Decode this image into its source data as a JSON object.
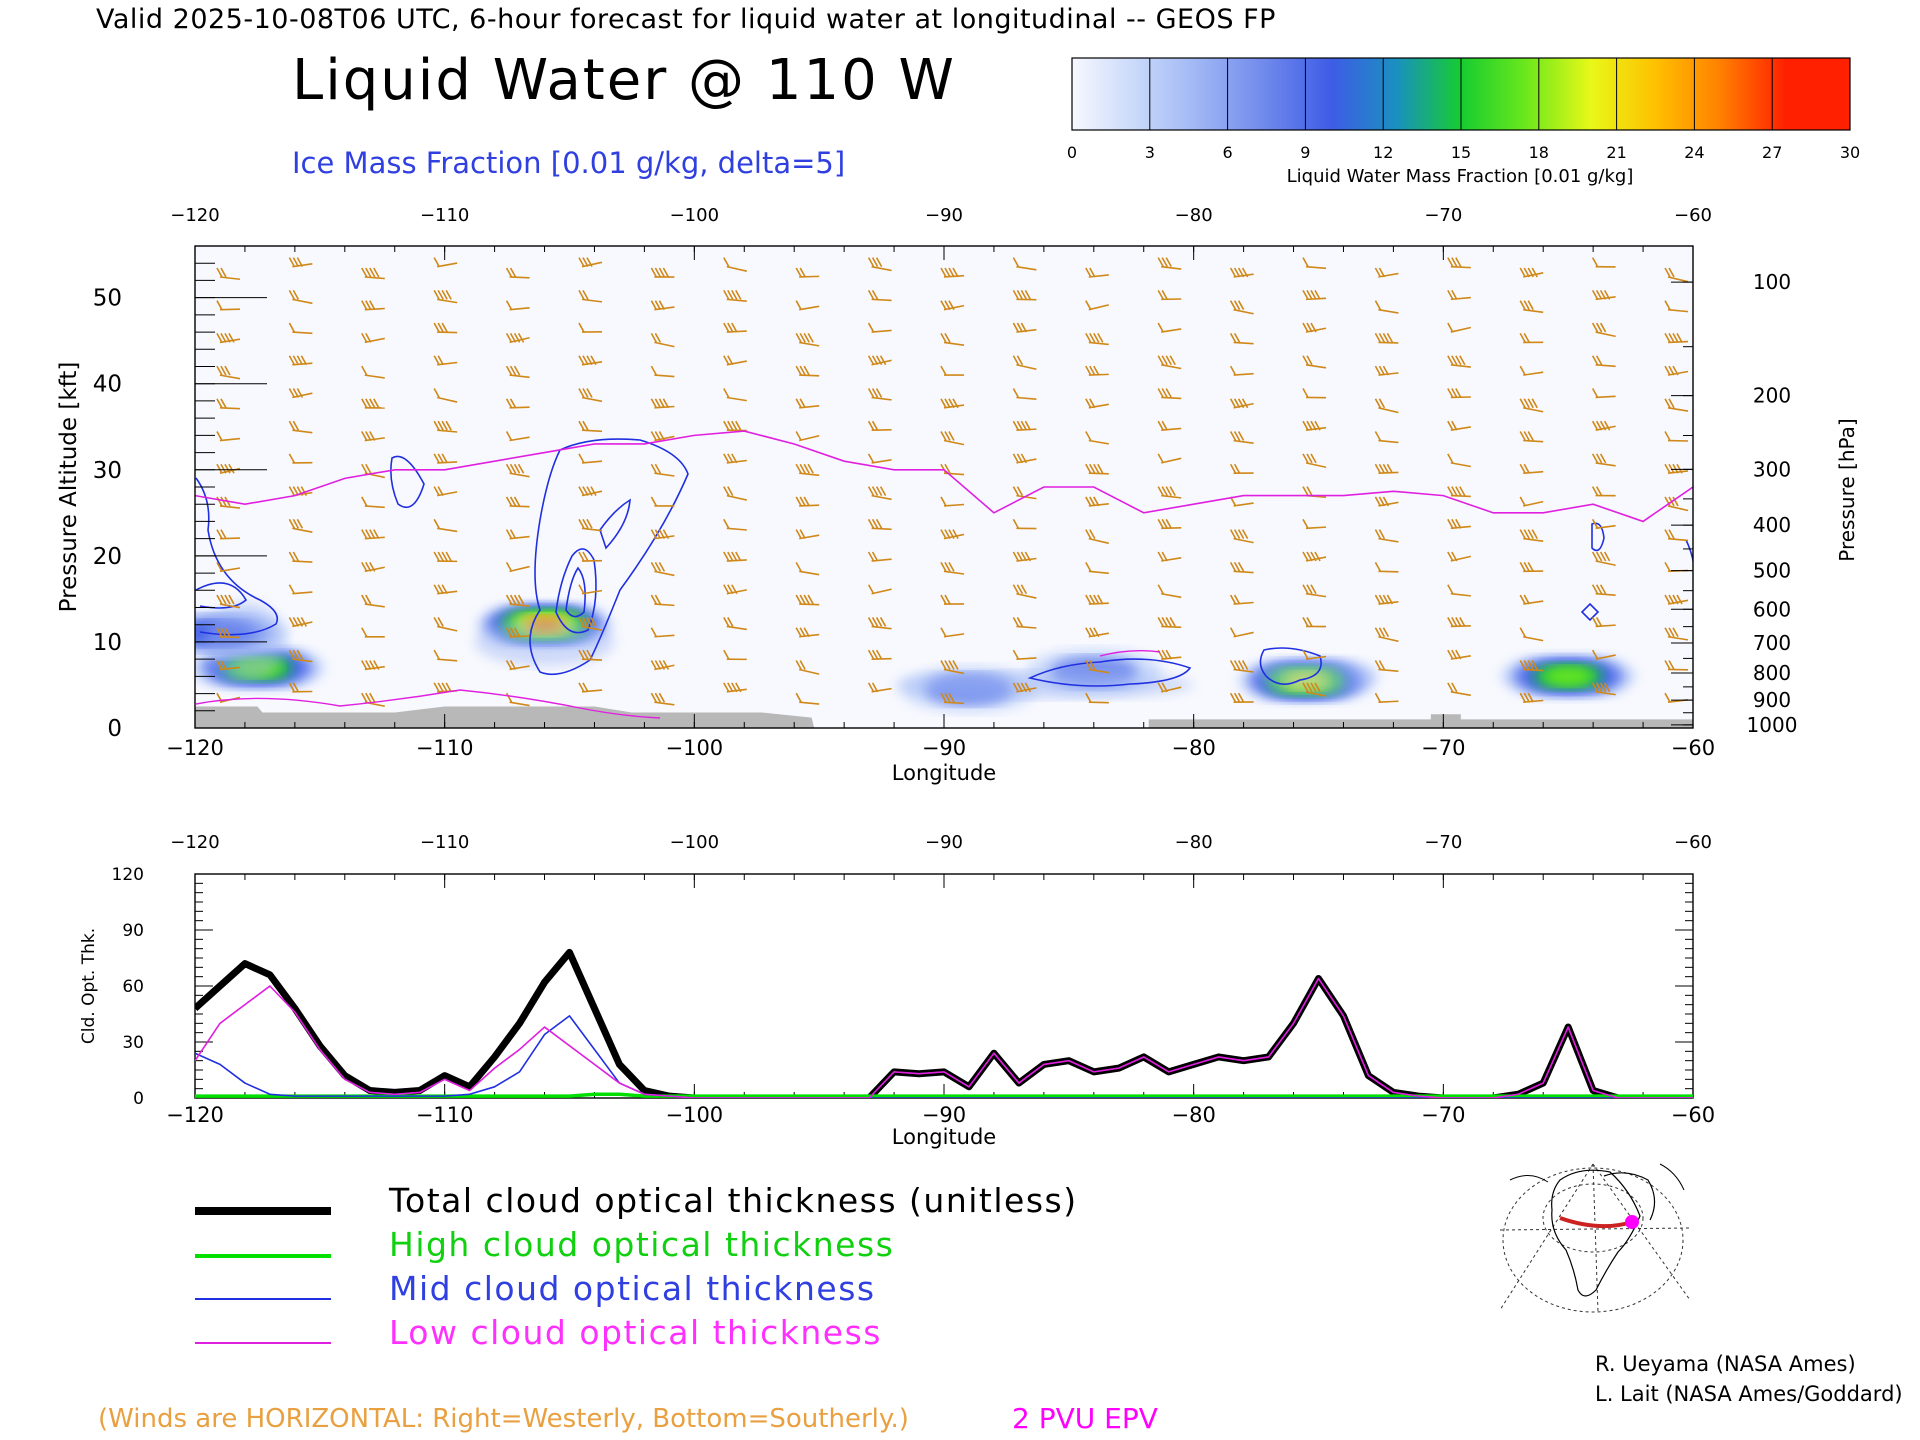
{
  "header": {
    "line": "Valid 2025-10-08T06 UTC, 6-hour forecast for liquid water at longitudinal -- GEOS FP",
    "title": "Liquid Water @ 110 W",
    "subtitle": "Ice Mass Fraction [0.01 g/kg, delta=5]"
  },
  "colorbar": {
    "label": "Liquid Water Mass Fraction [0.01 g/kg]",
    "ticks": [
      "0",
      "3",
      "6",
      "9",
      "12",
      "15",
      "18",
      "21",
      "24",
      "27",
      "30"
    ],
    "colors": [
      "#f6f8fe",
      "#c8d8fa",
      "#9cb4f4",
      "#6e88ec",
      "#3e5ce6",
      "#1a90c0",
      "#16cc30",
      "#6ce81c",
      "#e8f818",
      "#ffc000",
      "#ff8000",
      "#ff2000"
    ]
  },
  "chart_data": [
    {
      "type": "heatmap",
      "title": "Liquid Water @ 110 W",
      "xlabel": "Longitude",
      "ylabel": "Pressure Altitude [kft]",
      "y2label": "Pressure [hPa]",
      "xlim": [
        -120,
        -60
      ],
      "ylim": [
        0,
        56
      ],
      "x_ticks": [
        "−120",
        "−110",
        "−100",
        "−90",
        "−80",
        "−70",
        "−60"
      ],
      "y_ticks": [
        "0",
        "10",
        "20",
        "30",
        "40",
        "50"
      ],
      "pressure_ticks": [
        "100",
        "200",
        "300",
        "400",
        "500",
        "600",
        "700",
        "800",
        "900",
        "1000"
      ],
      "pressure_levels": [
        100,
        200,
        300,
        400,
        500,
        600,
        700,
        800,
        900,
        1000
      ],
      "liquid_water_blobs": [
        {
          "lon": -117.5,
          "alt": 7,
          "value": 21
        },
        {
          "lon": -119,
          "alt": 11,
          "value": 12
        },
        {
          "lon": -106,
          "alt": 12,
          "value": 27
        },
        {
          "lon": -89,
          "alt": 4.5,
          "value": 9
        },
        {
          "lon": -84,
          "alt": 6.5,
          "value": 8
        },
        {
          "lon": -75.5,
          "alt": 5.5,
          "value": 23
        },
        {
          "lon": -65,
          "alt": 6,
          "value": 20
        }
      ],
      "epv_2pvu_line": {
        "lon": [
          -120,
          -118,
          -116,
          -114,
          -112,
          -110,
          -108,
          -106,
          -104,
          -102,
          -100,
          -98,
          -96,
          -94,
          -92,
          -90,
          -88,
          -86,
          -84,
          -82,
          -80,
          -78,
          -76,
          -74,
          -72,
          -70,
          -68,
          -66,
          -64,
          -62,
          -60
        ],
        "alt_kft": [
          27,
          26,
          27,
          29,
          30,
          30,
          31,
          32,
          33,
          33,
          34,
          34.5,
          33,
          31,
          30,
          30,
          25,
          28,
          28,
          25,
          26,
          27,
          27,
          27,
          27.5,
          27,
          25,
          25,
          26,
          24,
          28
        ]
      }
    },
    {
      "type": "line",
      "ylabel": "Cld. Opt. Thk.",
      "xlabel": "Longitude",
      "xlim": [
        -120,
        -60
      ],
      "ylim": [
        0,
        120
      ],
      "x_ticks": [
        "−120",
        "−110",
        "−100",
        "−90",
        "−80",
        "−70",
        "−60"
      ],
      "y_ticks": [
        "0",
        "30",
        "60",
        "90",
        "120"
      ],
      "x": [
        -120,
        -119,
        -118,
        -117,
        -116,
        -115,
        -114,
        -113,
        -112,
        -111,
        -110,
        -109,
        -108,
        -107,
        -106,
        -105,
        -104,
        -103,
        -102,
        -101,
        -100,
        -99,
        -98,
        -97,
        -96,
        -95,
        -94,
        -93,
        -92,
        -91,
        -90,
        -89,
        -88,
        -87,
        -86,
        -85,
        -84,
        -83,
        -82,
        -81,
        -80,
        -79,
        -78,
        -77,
        -76,
        -75,
        -74,
        -73,
        -72,
        -71,
        -70,
        -69,
        -68,
        -67,
        -66,
        -65,
        -64,
        -63,
        -62,
        -61,
        -60
      ],
      "series": [
        {
          "name": "Total cloud optical thickness (unitless)",
          "color": "#000000",
          "values": [
            48,
            60,
            72,
            66,
            48,
            28,
            12,
            4,
            3,
            4,
            12,
            6,
            22,
            40,
            62,
            78,
            48,
            18,
            4,
            1,
            0,
            0,
            0,
            0,
            0,
            0,
            0,
            0,
            14,
            13,
            14,
            6,
            24,
            8,
            18,
            20,
            14,
            16,
            22,
            14,
            18,
            22,
            20,
            22,
            40,
            64,
            44,
            12,
            3,
            1,
            0,
            0,
            0,
            2,
            8,
            38,
            4,
            0,
            0,
            0,
            0
          ]
        },
        {
          "name": "High cloud optical thickness",
          "color": "#00e000",
          "values": [
            1,
            1,
            1,
            1,
            1,
            1,
            1,
            1,
            1,
            1,
            1,
            1,
            1,
            1,
            1,
            1,
            2,
            2,
            1,
            1,
            1,
            1,
            1,
            1,
            1,
            1,
            1,
            1,
            1,
            1,
            1,
            1,
            1,
            1,
            1,
            1,
            1,
            1,
            1,
            1,
            1,
            1,
            1,
            1,
            1,
            1,
            1,
            1,
            1,
            1,
            1,
            1,
            1,
            1,
            1,
            1,
            1,
            1,
            1,
            1,
            1
          ]
        },
        {
          "name": "Mid cloud optical thickness",
          "color": "#2030e0",
          "values": [
            24,
            18,
            8,
            2,
            1,
            1,
            1,
            1,
            1,
            1,
            1,
            2,
            6,
            14,
            34,
            44,
            26,
            8,
            2,
            1,
            0,
            0,
            0,
            0,
            0,
            0,
            0,
            0,
            0,
            0,
            0,
            0,
            0,
            0,
            0,
            0,
            0,
            0,
            0,
            0,
            0,
            0,
            0,
            0,
            0,
            0,
            0,
            0,
            0,
            0,
            0,
            0,
            0,
            0,
            0,
            0,
            0,
            0,
            0,
            0,
            0
          ]
        },
        {
          "name": "Low cloud optical thickness",
          "color": "#e020e0",
          "values": [
            20,
            40,
            50,
            60,
            46,
            26,
            10,
            3,
            2,
            3,
            10,
            4,
            16,
            26,
            38,
            28,
            18,
            8,
            2,
            1,
            0,
            0,
            0,
            0,
            0,
            0,
            0,
            0,
            14,
            13,
            14,
            6,
            24,
            8,
            18,
            20,
            14,
            16,
            22,
            14,
            18,
            22,
            20,
            22,
            40,
            64,
            44,
            12,
            3,
            1,
            0,
            0,
            0,
            2,
            8,
            38,
            4,
            0,
            0,
            0,
            0
          ]
        }
      ]
    }
  ],
  "legend": {
    "total": "Total cloud optical thickness (unitless)",
    "high": "High cloud optical thickness",
    "mid": "Mid cloud optical thickness",
    "low": "Low cloud optical thickness"
  },
  "footer": {
    "winds_note": "(Winds are HORIZONTAL: Right=Westerly, Bottom=Southerly.)",
    "epv_label": "2 PVU EPV",
    "credit_1": "R. Ueyama (NASA Ames)",
    "credit_2": "L. Lait (NASA Ames/Goddard)"
  },
  "colors": {
    "wind_barb": "#d08818",
    "ice_contour": "#2030e0",
    "epv_line": "#e020e0",
    "terrain": "#b8b8b8",
    "track": "#cc2222",
    "location_marker": "#ff00ff"
  }
}
